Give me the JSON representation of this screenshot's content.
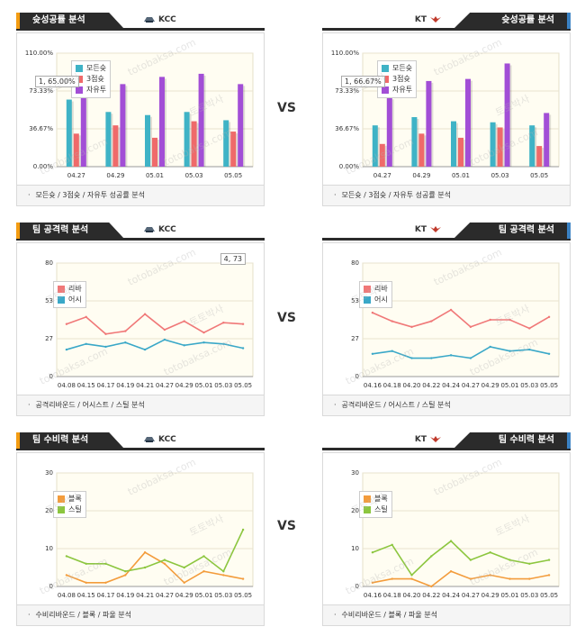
{
  "vs_label": "VS",
  "watermarks": [
    "토토박사",
    "totobaksa.com"
  ],
  "teams": {
    "left": "KCC",
    "right": "KT"
  },
  "panels": [
    {
      "id": "p1",
      "title": "슛성공률 분석",
      "footer": "모든슛 / 3점슛 / 자유투 성공률 분석"
    },
    {
      "id": "p2",
      "title": "슛성공률 분석",
      "footer": "모든슛 / 3점슛 / 자유투 성공률 분석"
    },
    {
      "id": "p3",
      "title": "팀 공격력 분석",
      "footer": "공격리바운드 / 어시스트 / 스틸 분석"
    },
    {
      "id": "p4",
      "title": "팀 공격력 분석",
      "footer": "공격리바운드 / 어시스트 / 스틸 분석"
    },
    {
      "id": "p5",
      "title": "팀 수비력 분석",
      "footer": "수비리바운드 / 블록 / 파울 분석"
    },
    {
      "id": "p6",
      "title": "팀 수비력 분석",
      "footer": "수비리바운드 / 블록 / 파울 분석"
    }
  ],
  "tooltips": {
    "p1": "1, 65.00%",
    "p2": "1, 66.67%",
    "p3": "4, 73"
  },
  "colors": {
    "blue": "#3fb3c6",
    "red": "#ef6a6a",
    "purple": "#a24ed6",
    "orange": "#f39c3c",
    "green": "#8cc63f",
    "pink": "#f07878",
    "teal": "#3aa8c8"
  },
  "chart_data": [
    {
      "type": "bar",
      "id": "p1",
      "categories": [
        "04.27",
        "04.29",
        "05.01",
        "05.03",
        "05.05"
      ],
      "ylim": [
        0,
        110
      ],
      "yticks": [
        "0.00%",
        "36.67%",
        "73.33%",
        "110.00%"
      ],
      "series": [
        {
          "name": "모든슛",
          "color": "#3fb3c6",
          "values": [
            65,
            53,
            50,
            53,
            45
          ]
        },
        {
          "name": "3점슛",
          "color": "#ef6a6a",
          "values": [
            32,
            40,
            28,
            44,
            34
          ]
        },
        {
          "name": "자유투",
          "color": "#a24ed6",
          "values": [
            88,
            80,
            87,
            90,
            80
          ]
        }
      ]
    },
    {
      "type": "bar",
      "id": "p2",
      "categories": [
        "04.27",
        "04.29",
        "05.01",
        "05.03",
        "05.05"
      ],
      "ylim": [
        0,
        110
      ],
      "yticks": [
        "0.00%",
        "36.67%",
        "73.33%",
        "110.00%"
      ],
      "series": [
        {
          "name": "모든슛",
          "color": "#3fb3c6",
          "values": [
            40,
            48,
            44,
            43,
            40
          ]
        },
        {
          "name": "3점슛",
          "color": "#ef6a6a",
          "values": [
            22,
            32,
            28,
            38,
            20
          ]
        },
        {
          "name": "자유투",
          "color": "#a24ed6",
          "values": [
            67,
            83,
            85,
            100,
            52
          ]
        }
      ]
    },
    {
      "type": "line",
      "id": "p3",
      "categories": [
        "04.08",
        "04.15",
        "04.17",
        "04.19",
        "04.21",
        "04.27",
        "04.29",
        "05.01",
        "05.03",
        "05.05"
      ],
      "ylim": [
        0,
        80
      ],
      "yticks": [
        "0",
        "27",
        "53",
        "80"
      ],
      "series": [
        {
          "name": "리바",
          "color": "#f07878",
          "values": [
            37,
            42,
            30,
            32,
            44,
            33,
            39,
            31,
            38,
            37
          ]
        },
        {
          "name": "어시",
          "color": "#3aa8c8",
          "values": [
            19,
            23,
            21,
            24,
            19,
            26,
            22,
            24,
            23,
            20
          ]
        }
      ]
    },
    {
      "type": "line",
      "id": "p4",
      "categories": [
        "04.16",
        "04.18",
        "04.20",
        "04.22",
        "04.24",
        "04.27",
        "04.29",
        "05.01",
        "05.03",
        "05.05"
      ],
      "ylim": [
        0,
        80
      ],
      "yticks": [
        "0",
        "27",
        "53",
        "80"
      ],
      "series": [
        {
          "name": "리바",
          "color": "#f07878",
          "values": [
            45,
            39,
            35,
            39,
            47,
            35,
            40,
            40,
            34,
            42
          ]
        },
        {
          "name": "어시",
          "color": "#3aa8c8",
          "values": [
            16,
            18,
            13,
            13,
            15,
            13,
            21,
            18,
            19,
            16
          ]
        }
      ]
    },
    {
      "type": "line",
      "id": "p5",
      "categories": [
        "04.08",
        "04.15",
        "04.17",
        "04.19",
        "04.21",
        "04.27",
        "04.29",
        "05.01",
        "05.03",
        "05.05"
      ],
      "ylim": [
        0,
        30
      ],
      "yticks": [
        "0",
        "10",
        "20",
        "30"
      ],
      "series": [
        {
          "name": "블록",
          "color": "#f39c3c",
          "values": [
            3,
            1,
            1,
            3,
            9,
            6,
            1,
            4,
            3,
            2
          ]
        },
        {
          "name": "스틸",
          "color": "#8cc63f",
          "values": [
            8,
            6,
            6,
            4,
            5,
            7,
            5,
            8,
            4,
            15
          ]
        }
      ]
    },
    {
      "type": "line",
      "id": "p6",
      "categories": [
        "04.16",
        "04.18",
        "04.20",
        "04.22",
        "04.24",
        "04.27",
        "04.29",
        "05.01",
        "05.03",
        "05.05"
      ],
      "ylim": [
        0,
        30
      ],
      "yticks": [
        "0",
        "10",
        "20",
        "30"
      ],
      "series": [
        {
          "name": "블록",
          "color": "#f39c3c",
          "values": [
            1,
            2,
            2,
            0,
            4,
            2,
            3,
            2,
            2,
            3
          ]
        },
        {
          "name": "스틸",
          "color": "#8cc63f",
          "values": [
            9,
            11,
            3,
            8,
            12,
            7,
            9,
            7,
            6,
            7
          ]
        }
      ]
    }
  ]
}
